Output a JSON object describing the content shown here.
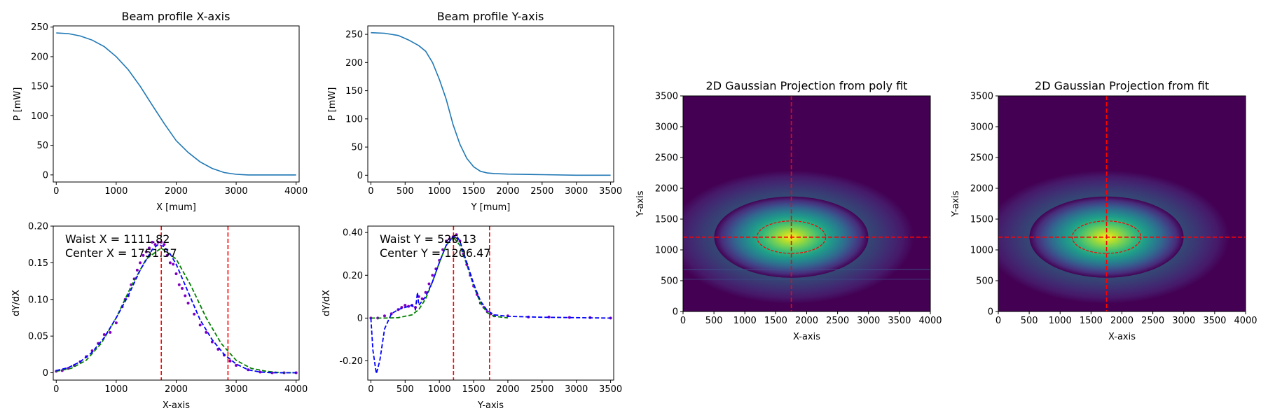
{
  "chart_data": [
    {
      "type": "line",
      "title": "Beam profile X-axis",
      "xlabel": "X [mum]",
      "ylabel": "P [mW]",
      "xlim": [
        -50,
        4050
      ],
      "ylim": [
        -12,
        252
      ],
      "xticks": [
        0,
        1000,
        2000,
        3000,
        4000
      ],
      "yticks": [
        0,
        50,
        100,
        150,
        200,
        250
      ],
      "series": [
        {
          "color": "#1f77b4",
          "x": [
            0,
            200,
            400,
            600,
            800,
            1000,
            1200,
            1400,
            1600,
            1800,
            2000,
            2200,
            2400,
            2600,
            2800,
            3000,
            3200,
            3400,
            3600,
            3800,
            4000
          ],
          "y": [
            240,
            239,
            235,
            228,
            217,
            200,
            178,
            150,
            118,
            87,
            58,
            38,
            22,
            11,
            4,
            1,
            0,
            0,
            0,
            0,
            0
          ]
        }
      ]
    },
    {
      "type": "line",
      "title": "Beam profile Y-axis",
      "xlabel": "Y [mum]",
      "ylabel": "P [mW]",
      "xlim": [
        -45,
        3545
      ],
      "ylim": [
        -12,
        265
      ],
      "xticks": [
        0,
        500,
        1000,
        1500,
        2000,
        2500,
        3000,
        3500
      ],
      "yticks": [
        0,
        50,
        100,
        150,
        200,
        250
      ],
      "series": [
        {
          "color": "#1f77b4",
          "x": [
            0,
            200,
            400,
            550,
            700,
            800,
            900,
            1000,
            1100,
            1200,
            1300,
            1400,
            1500,
            1600,
            1700,
            1800,
            2000,
            2500,
            3000,
            3500
          ],
          "y": [
            253,
            252,
            248,
            240,
            230,
            220,
            200,
            170,
            135,
            90,
            55,
            30,
            15,
            7,
            4,
            3,
            2,
            1,
            0,
            0
          ]
        }
      ]
    },
    {
      "type": "scatter",
      "xlabel": "X-axis",
      "ylabel": "dY/dX",
      "xlim": [
        -50,
        4050
      ],
      "ylim": [
        -0.01,
        0.2
      ],
      "xticks": [
        0,
        1000,
        2000,
        3000,
        4000
      ],
      "yticks": [
        0.0,
        0.05,
        0.1,
        0.15,
        0.2
      ],
      "annotations": [
        "Waist X = 1111.82",
        "Center X = 1751.57"
      ],
      "vlines": [
        1751.57,
        2863.39
      ],
      "points": {
        "color": "#7f00bf",
        "x": [
          0,
          100,
          200,
          300,
          400,
          500,
          600,
          700,
          800,
          900,
          1000,
          1100,
          1150,
          1200,
          1250,
          1300,
          1350,
          1400,
          1450,
          1500,
          1550,
          1600,
          1650,
          1700,
          1750,
          1800,
          1850,
          1900,
          1950,
          2000,
          2050,
          2100,
          2150,
          2200,
          2300,
          2400,
          2500,
          2600,
          2700,
          2800,
          2900,
          3000,
          3200,
          3400,
          3600,
          3800,
          4000
        ],
        "y": [
          0.002,
          0.003,
          0.006,
          0.01,
          0.015,
          0.022,
          0.03,
          0.04,
          0.052,
          0.055,
          0.068,
          0.09,
          0.1,
          0.105,
          0.12,
          0.128,
          0.14,
          0.15,
          0.16,
          0.165,
          0.17,
          0.178,
          0.175,
          0.178,
          0.178,
          0.175,
          0.16,
          0.15,
          0.148,
          0.135,
          0.12,
          0.115,
          0.105,
          0.095,
          0.08,
          0.065,
          0.055,
          0.042,
          0.032,
          0.024,
          0.016,
          0.01,
          0.004,
          0.001,
          0.0,
          0.0,
          0.0
        ]
      },
      "series": [
        {
          "style": "dashed",
          "color": "#008000",
          "x": [
            0,
            250,
            500,
            750,
            1000,
            1250,
            1500,
            1750,
            2000,
            2250,
            2500,
            2750,
            3000,
            3250,
            3500,
            3750,
            4000
          ],
          "y": [
            0.002,
            0.006,
            0.017,
            0.04,
            0.075,
            0.118,
            0.155,
            0.17,
            0.155,
            0.118,
            0.075,
            0.04,
            0.017,
            0.006,
            0.002,
            0.0,
            0.0
          ]
        },
        {
          "style": "dashed",
          "color": "#0000ff",
          "x": [
            0,
            200,
            400,
            600,
            800,
            1000,
            1200,
            1400,
            1600,
            1700,
            1800,
            1900,
            2000,
            2200,
            2400,
            2600,
            2800,
            3000,
            3200,
            3400,
            3600,
            3800,
            4000
          ],
          "y": [
            0.003,
            0.007,
            0.015,
            0.028,
            0.048,
            0.075,
            0.105,
            0.14,
            0.168,
            0.175,
            0.172,
            0.162,
            0.148,
            0.11,
            0.072,
            0.045,
            0.025,
            0.012,
            0.004,
            0.001,
            0.0,
            0.0,
            0.0
          ]
        }
      ]
    },
    {
      "type": "scatter",
      "xlabel": "Y-axis",
      "ylabel": "dY/dX",
      "xlim": [
        -45,
        3545
      ],
      "ylim": [
        -0.29,
        0.43
      ],
      "xticks": [
        0,
        500,
        1000,
        1500,
        2000,
        2500,
        3000,
        3500
      ],
      "yticks": [
        -0.2,
        0.0,
        0.2,
        0.4
      ],
      "annotations": [
        "Waist Y = 526.13",
        "Center Y = 1206.47"
      ],
      "vlines": [
        1206.47,
        1732.6
      ],
      "points": {
        "color": "#7f00bf",
        "x": [
          0,
          100,
          200,
          300,
          400,
          450,
          500,
          550,
          600,
          650,
          700,
          750,
          800,
          850,
          900,
          950,
          1000,
          1050,
          1100,
          1150,
          1200,
          1250,
          1300,
          1350,
          1400,
          1450,
          1500,
          1550,
          1600,
          1650,
          1700,
          1750,
          1800,
          2000,
          2300,
          2600,
          2900,
          3200,
          3500
        ],
        "y": [
          0.0,
          0.0,
          0.01,
          0.02,
          0.04,
          0.05,
          0.06,
          0.055,
          0.06,
          0.05,
          0.1,
          0.09,
          0.12,
          0.16,
          0.2,
          0.23,
          0.27,
          0.32,
          0.36,
          0.37,
          0.38,
          0.39,
          0.36,
          0.3,
          0.25,
          0.2,
          0.15,
          0.11,
          0.07,
          0.05,
          0.03,
          0.02,
          0.01,
          0.01,
          0.005,
          0.005,
          0.003,
          0.002,
          0.0
        ]
      },
      "series": [
        {
          "style": "dashed",
          "color": "#008000",
          "x": [
            0,
            200,
            400,
            600,
            700,
            800,
            900,
            1000,
            1100,
            1200,
            1300,
            1400,
            1500,
            1600,
            1700,
            1800,
            2000
          ],
          "y": [
            0.0,
            0.0,
            0.002,
            0.015,
            0.04,
            0.09,
            0.17,
            0.26,
            0.34,
            0.38,
            0.34,
            0.25,
            0.15,
            0.07,
            0.025,
            0.008,
            0.001
          ]
        },
        {
          "style": "dashed",
          "color": "#0000ff",
          "x": [
            0,
            30,
            80,
            130,
            200,
            300,
            400,
            500,
            600,
            650,
            680,
            700,
            800,
            900,
            1000,
            1100,
            1200,
            1250,
            1300,
            1400,
            1500,
            1600,
            1700,
            1800,
            2000,
            2500,
            3000,
            3500
          ],
          "y": [
            0.0,
            -0.15,
            -0.26,
            -0.2,
            -0.05,
            0.02,
            0.04,
            0.05,
            0.06,
            0.04,
            0.12,
            0.06,
            0.1,
            0.17,
            0.26,
            0.34,
            0.38,
            0.385,
            0.36,
            0.26,
            0.16,
            0.08,
            0.035,
            0.015,
            0.008,
            0.004,
            0.002,
            0.0
          ]
        }
      ]
    },
    {
      "type": "heatmap",
      "title": "2D Gaussian Projection from poly fit",
      "xlabel": "X-axis",
      "ylabel": "Y-axis",
      "colormap": "viridis",
      "xlim": [
        0,
        4000
      ],
      "ylim": [
        0,
        3500
      ],
      "xticks": [
        0,
        500,
        1000,
        1500,
        2000,
        2500,
        3000,
        3500,
        4000
      ],
      "yticks": [
        0,
        500,
        1000,
        1500,
        2000,
        2500,
        3000,
        3500
      ],
      "center": [
        1751.57,
        1206.47
      ],
      "waist": [
        555.91,
        263.07
      ],
      "crosshair_color": "#ff0000",
      "ellipse_color": "#ff0000"
    },
    {
      "type": "heatmap",
      "title": "2D Gaussian Projection from fit",
      "xlabel": "X-axis",
      "ylabel": "Y-axis",
      "colormap": "viridis",
      "xlim": [
        0,
        4000
      ],
      "ylim": [
        0,
        3500
      ],
      "xticks": [
        0,
        500,
        1000,
        1500,
        2000,
        2500,
        3000,
        3500,
        4000
      ],
      "yticks": [
        0,
        500,
        1000,
        1500,
        2000,
        2500,
        3000,
        3500
      ],
      "center": [
        1751.57,
        1206.47
      ],
      "waist": [
        555.91,
        263.07
      ],
      "crosshair_color": "#ff0000",
      "ellipse_color": "#ff0000"
    }
  ]
}
